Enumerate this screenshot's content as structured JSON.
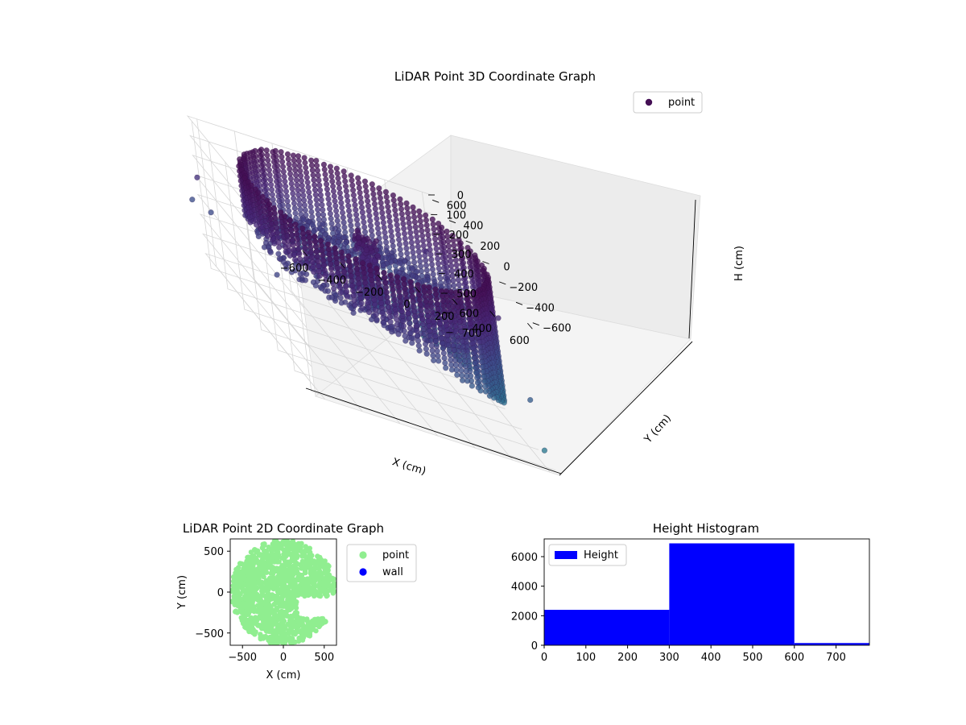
{
  "chart_data": [
    {
      "id": "lidar3d",
      "type": "scatter",
      "title": "LiDAR Point 3D Coordinate Graph",
      "xlabel": "X (cm)",
      "ylabel": "Y (cm)",
      "zlabel": "H (cm)",
      "xlim": [
        -650,
        650
      ],
      "ylim": [
        -650,
        650
      ],
      "zlim": [
        0,
        750
      ],
      "z_inverted": true,
      "x_ticks": [
        -600,
        -400,
        -200,
        0,
        200,
        400,
        600
      ],
      "y_ticks": [
        -600,
        -400,
        -200,
        0,
        200,
        400,
        600
      ],
      "z_ticks": [
        0,
        100,
        200,
        300,
        400,
        500,
        600,
        700
      ],
      "legend": {
        "placement": "upper-right",
        "entries": [
          "point"
        ]
      },
      "colormap": "viridis (by height)",
      "point_color": "#440f54",
      "grid": true,
      "shape": "cylindrical wall ring of radius ~600 cm spanning heights 0–700 cm, with interior human-shaped cluster near center and scattered outliers",
      "sample_points": [
        {
          "x": -600,
          "y": 0,
          "h": 100
        },
        {
          "x": 0,
          "y": 600,
          "h": 50
        },
        {
          "x": 600,
          "y": 0,
          "h": 300
        },
        {
          "x": 0,
          "y": -600,
          "h": 500
        },
        {
          "x": -100,
          "y": 50,
          "h": 150
        },
        {
          "x": 50,
          "y": -30,
          "h": 400
        },
        {
          "x": 550,
          "y": -500,
          "h": 650
        },
        {
          "x": -650,
          "y": 400,
          "h": 300
        }
      ]
    },
    {
      "id": "lidar2d",
      "type": "scatter",
      "title": "LiDAR Point 2D Coordinate Graph",
      "xlabel": "X (cm)",
      "ylabel": "Y (cm)",
      "xlim": [
        -650,
        650
      ],
      "ylim": [
        -650,
        650
      ],
      "x_ticks": [
        -500,
        0,
        500
      ],
      "y_ticks": [
        -500,
        0,
        500
      ],
      "legend": {
        "placement": "outside-right",
        "entries": [
          {
            "name": "point",
            "color": "#90ee90"
          },
          {
            "name": "wall",
            "color": "#0000ff"
          }
        ]
      },
      "series": [
        {
          "name": "point",
          "color": "#90ee90",
          "region": "filled disk of radius ~640 cm centered at origin, with notch in lower-right between y=-50 and y=-300, x>170"
        },
        {
          "name": "wall",
          "color": "#0000ff",
          "values": []
        }
      ]
    },
    {
      "id": "heighthist",
      "type": "bar",
      "title": "Height Histogram",
      "xlim": [
        0,
        780
      ],
      "ylim": [
        0,
        7200
      ],
      "x_ticks": [
        0,
        100,
        200,
        300,
        400,
        500,
        600,
        700
      ],
      "y_ticks": [
        0,
        2000,
        4000,
        6000
      ],
      "legend": {
        "placement": "upper-left",
        "entries": [
          "Height"
        ]
      },
      "color": "#0000ff",
      "bins": [
        {
          "start": 0,
          "end": 300,
          "count": 2400
        },
        {
          "start": 300,
          "end": 600,
          "count": 6900
        },
        {
          "start": 600,
          "end": 780,
          "count": 150
        }
      ]
    }
  ]
}
